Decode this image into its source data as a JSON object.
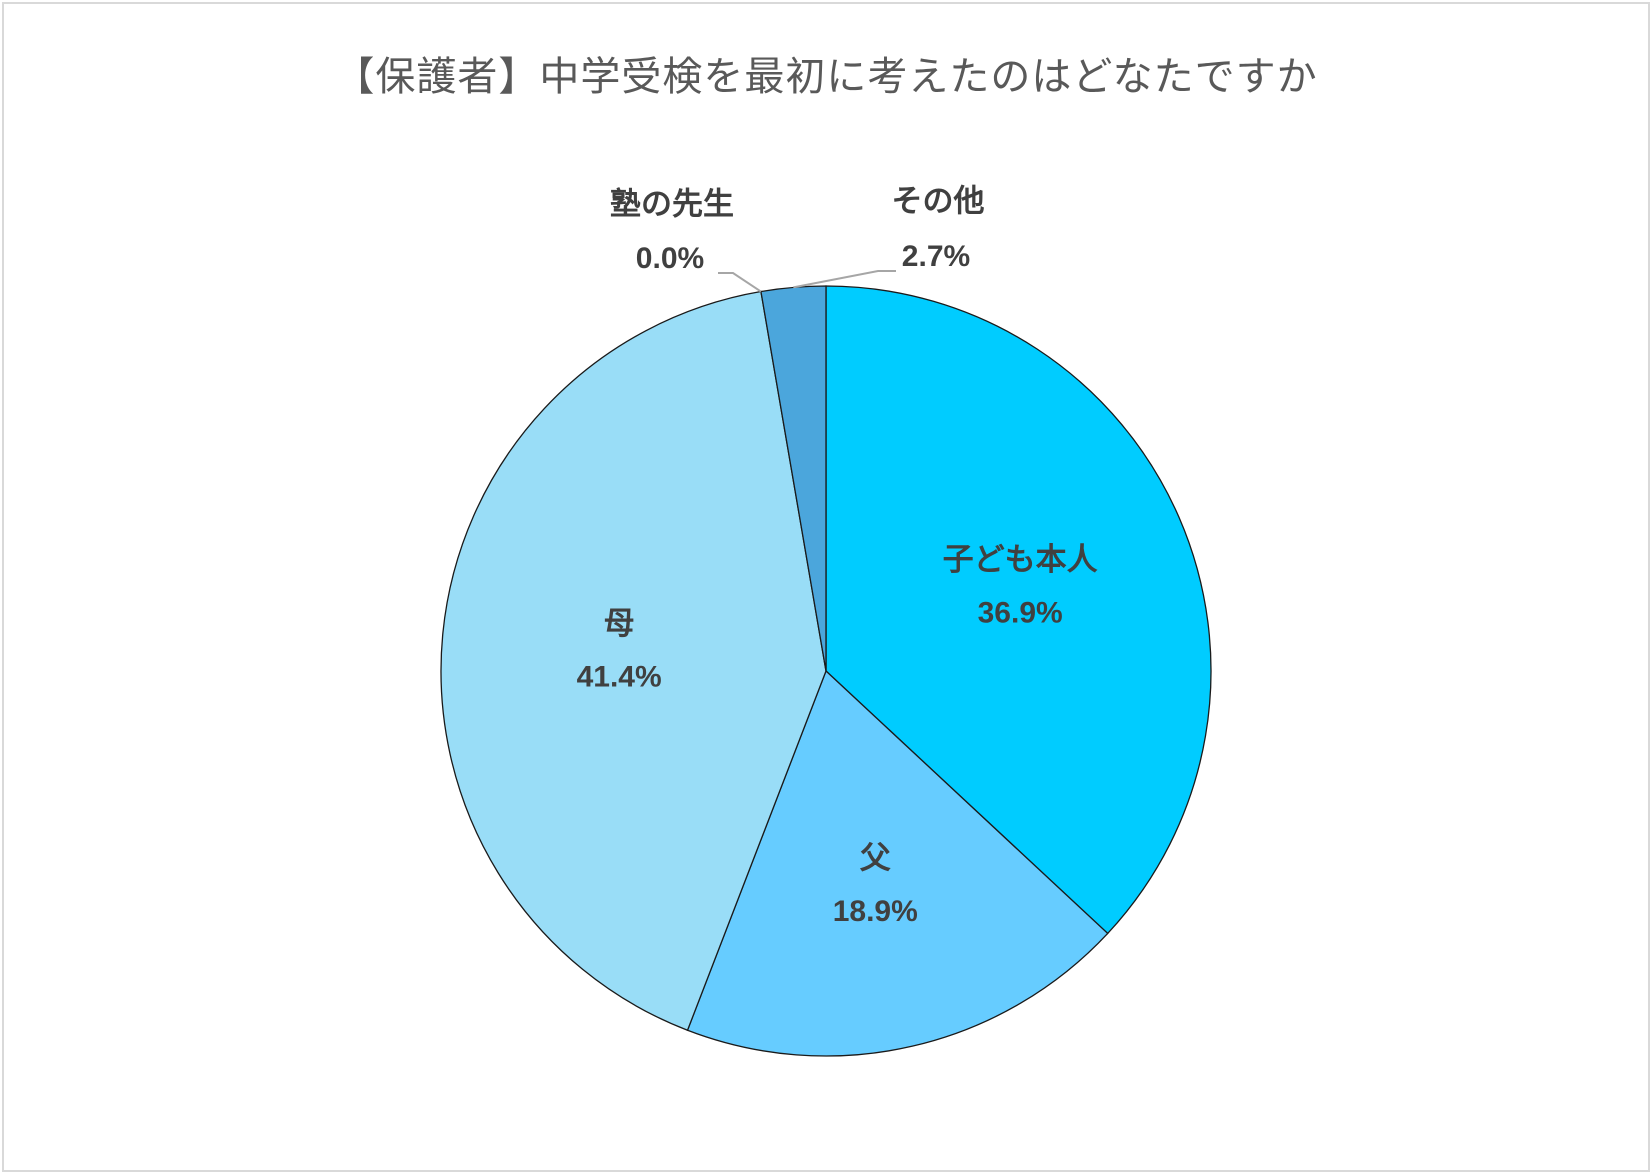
{
  "chart_data": {
    "type": "pie",
    "title": "【保護者】中学受検を最初に考えたのはどなたですか",
    "slices": [
      {
        "label": "子ども本人",
        "value": 36.9,
        "display": "36.9%",
        "color": "#00CCFF"
      },
      {
        "label": "父",
        "value": 18.9,
        "display": "18.9%",
        "color": "#66CCFF"
      },
      {
        "label": "母",
        "value": 41.4,
        "display": "41.4%",
        "color": "#99DDF7"
      },
      {
        "label": "塾の先生",
        "value": 0.0,
        "display": "0.0%",
        "color": "#3399CC"
      },
      {
        "label": "その他",
        "value": 2.7,
        "display": "2.7%",
        "color": "#4BA6DC"
      }
    ]
  }
}
